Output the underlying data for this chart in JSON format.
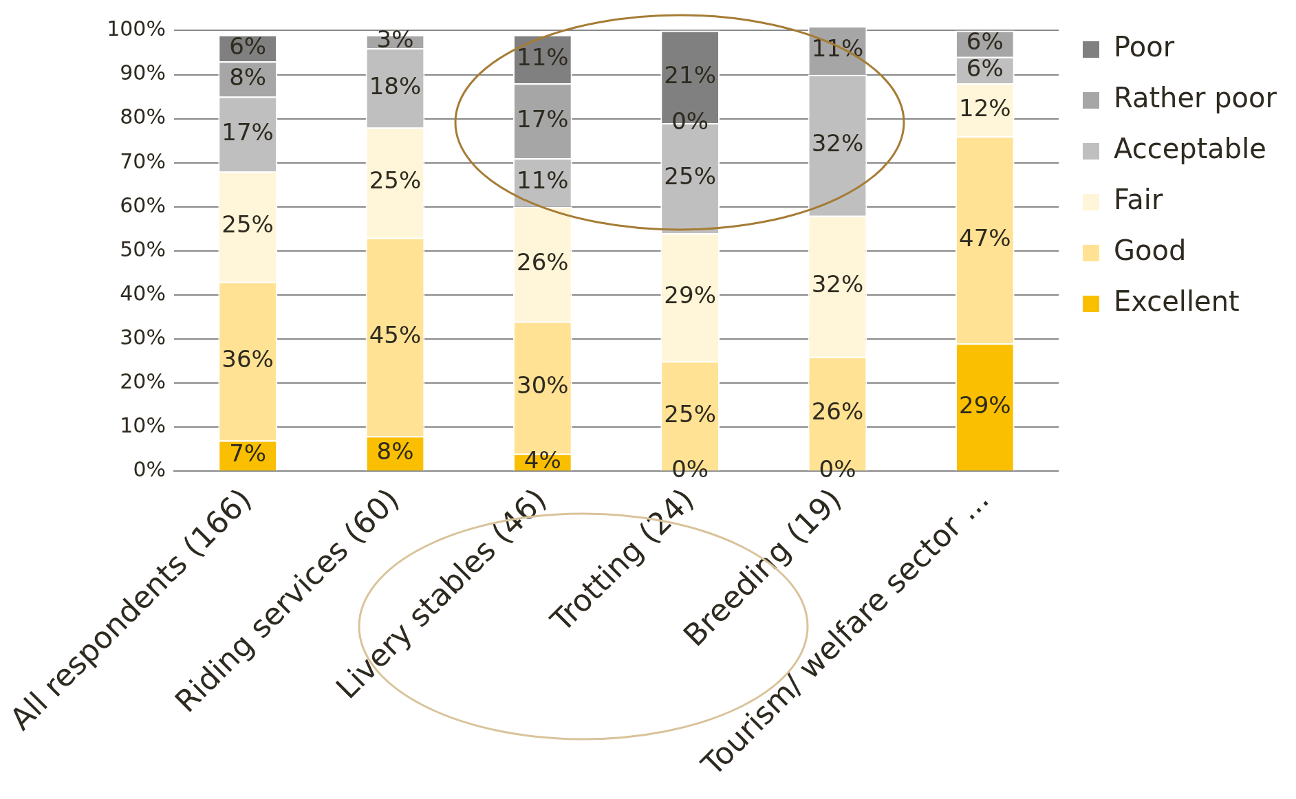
{
  "chart_data": {
    "type": "bar",
    "stacked": true,
    "categories": [
      "All respondents (166)",
      "Riding services (60)",
      "Livery stables (46)",
      "Trotting (24)",
      "Breeding (19)",
      "Tourism/ welfare sector ..."
    ],
    "series": [
      {
        "name": "Excellent",
        "color": "#f9bf00",
        "values": [
          7,
          8,
          4,
          0,
          0,
          29
        ],
        "value_labels": [
          "7%",
          "8%",
          "4%",
          null,
          null,
          "29%"
        ]
      },
      {
        "name": "Good",
        "color": "#ffe294",
        "values": [
          36,
          45,
          30,
          25,
          26,
          47
        ],
        "value_labels": [
          "36%",
          "45%",
          "30%",
          "25%",
          "26%",
          "47%"
        ]
      },
      {
        "name": "Fair",
        "color": "#fff5d8",
        "values": [
          25,
          25,
          26,
          29,
          32,
          12
        ],
        "value_labels": [
          "25%",
          "25%",
          "26%",
          "29%",
          "32%",
          "12%"
        ]
      },
      {
        "name": "Acceptable",
        "color": "#bfbfbf",
        "values": [
          17,
          18,
          11,
          25,
          32,
          6
        ],
        "value_labels": [
          "17%",
          "18%",
          "11%",
          "25%",
          "32%",
          "6%"
        ]
      },
      {
        "name": "Rather poor",
        "color": "#a6a6a6",
        "values": [
          8,
          3,
          17,
          0,
          11,
          6
        ],
        "value_labels": [
          "8%",
          "3%",
          "17%",
          null,
          "11%",
          "6%"
        ]
      },
      {
        "name": "Poor",
        "color": "#808080",
        "values": [
          6,
          null,
          11,
          21,
          null,
          null
        ],
        "value_labels": [
          "6%",
          null,
          "11%",
          "21%",
          null,
          null
        ]
      }
    ],
    "ylim": [
      0,
      101
    ],
    "yticks": [
      {
        "value": 0,
        "label": "0%"
      },
      {
        "value": 10,
        "label": "10%"
      },
      {
        "value": 20,
        "label": "20%"
      },
      {
        "value": 30,
        "label": "30%"
      },
      {
        "value": 40,
        "label": "40%"
      },
      {
        "value": 50,
        "label": "50%"
      },
      {
        "value": 60,
        "label": "60%"
      },
      {
        "value": 70,
        "label": "70%"
      },
      {
        "value": 80,
        "label": "80%"
      },
      {
        "value": 90,
        "label": "90%"
      },
      {
        "value": 100,
        "label": "100%"
      }
    ],
    "annotations": [
      {
        "text": "0%",
        "x": "Trotting (24)",
        "y": 0
      },
      {
        "text": "0%",
        "x": "Breeding (19)",
        "y": 0
      },
      {
        "text": "0%",
        "x": "Trotting (24)",
        "y": 79
      }
    ],
    "grid": "y",
    "legend": "right"
  }
}
